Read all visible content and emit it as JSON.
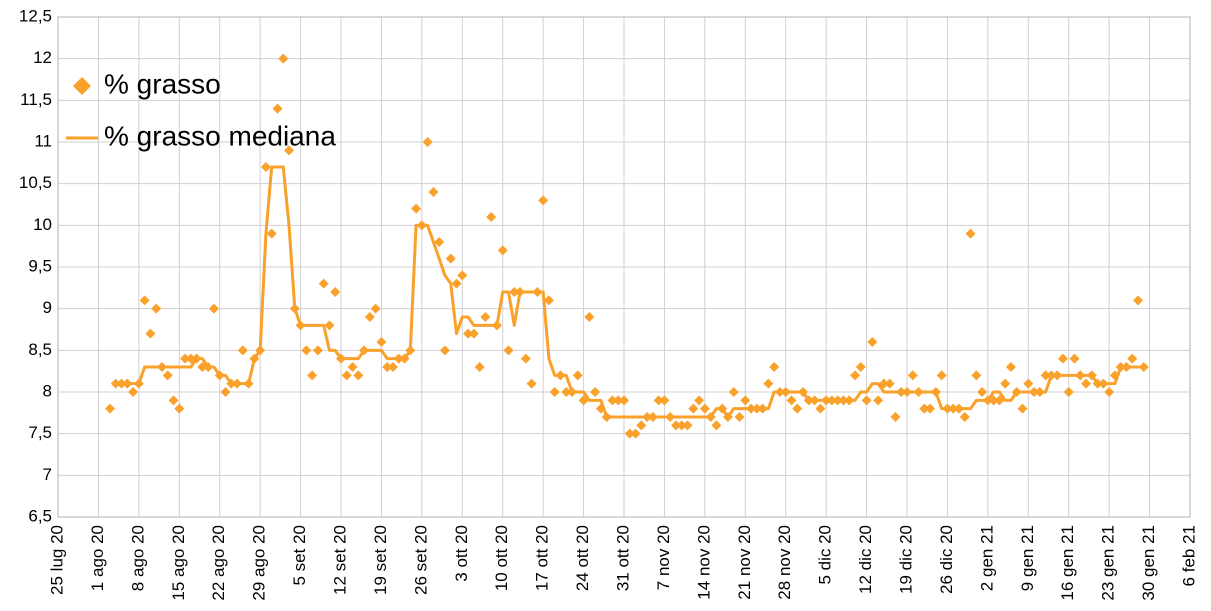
{
  "chart_data": {
    "type": "scatter+line",
    "x": [
      "2020-08-03",
      "2020-08-04",
      "2020-08-05",
      "2020-08-06",
      "2020-08-07",
      "2020-08-08",
      "2020-08-09",
      "2020-08-10",
      "2020-08-11",
      "2020-08-12",
      "2020-08-13",
      "2020-08-14",
      "2020-08-15",
      "2020-08-16",
      "2020-08-17",
      "2020-08-18",
      "2020-08-19",
      "2020-08-20",
      "2020-08-21",
      "2020-08-22",
      "2020-08-23",
      "2020-08-24",
      "2020-08-25",
      "2020-08-26",
      "2020-08-27",
      "2020-08-28",
      "2020-08-29",
      "2020-08-30",
      "2020-08-31",
      "2020-09-01",
      "2020-09-02",
      "2020-09-03",
      "2020-09-04",
      "2020-09-05",
      "2020-09-06",
      "2020-09-07",
      "2020-09-08",
      "2020-09-09",
      "2020-09-10",
      "2020-09-11",
      "2020-09-12",
      "2020-09-13",
      "2020-09-14",
      "2020-09-15",
      "2020-09-16",
      "2020-09-17",
      "2020-09-18",
      "2020-09-19",
      "2020-09-20",
      "2020-09-21",
      "2020-09-22",
      "2020-09-23",
      "2020-09-24",
      "2020-09-25",
      "2020-09-26",
      "2020-09-27",
      "2020-09-28",
      "2020-09-29",
      "2020-09-30",
      "2020-10-01",
      "2020-10-02",
      "2020-10-03",
      "2020-10-04",
      "2020-10-05",
      "2020-10-06",
      "2020-10-07",
      "2020-10-08",
      "2020-10-09",
      "2020-10-10",
      "2020-10-11",
      "2020-10-12",
      "2020-10-13",
      "2020-10-14",
      "2020-10-15",
      "2020-10-16",
      "2020-10-17",
      "2020-10-18",
      "2020-10-19",
      "2020-10-20",
      "2020-10-21",
      "2020-10-22",
      "2020-10-23",
      "2020-10-24",
      "2020-10-25",
      "2020-10-26",
      "2020-10-27",
      "2020-10-28",
      "2020-10-29",
      "2020-10-30",
      "2020-10-31",
      "2020-11-01",
      "2020-11-02",
      "2020-11-03",
      "2020-11-04",
      "2020-11-05",
      "2020-11-06",
      "2020-11-07",
      "2020-11-08",
      "2020-11-09",
      "2020-11-10",
      "2020-11-11",
      "2020-11-12",
      "2020-11-13",
      "2020-11-14",
      "2020-11-15",
      "2020-11-16",
      "2020-11-17",
      "2020-11-18",
      "2020-11-19",
      "2020-11-20",
      "2020-11-21",
      "2020-11-22",
      "2020-11-23",
      "2020-11-24",
      "2020-11-25",
      "2020-11-26",
      "2020-11-27",
      "2020-11-28",
      "2020-11-29",
      "2020-11-30",
      "2020-12-01",
      "2020-12-02",
      "2020-12-03",
      "2020-12-04",
      "2020-12-05",
      "2020-12-06",
      "2020-12-07",
      "2020-12-08",
      "2020-12-09",
      "2020-12-10",
      "2020-12-11",
      "2020-12-12",
      "2020-12-13",
      "2020-12-14",
      "2020-12-15",
      "2020-12-16",
      "2020-12-17",
      "2020-12-18",
      "2020-12-19",
      "2020-12-20",
      "2020-12-21",
      "2020-12-22",
      "2020-12-23",
      "2020-12-24",
      "2020-12-25",
      "2020-12-26",
      "2020-12-27",
      "2020-12-28",
      "2020-12-29",
      "2020-12-30",
      "2020-12-31",
      "2021-01-01",
      "2021-01-02",
      "2021-01-03",
      "2021-01-04",
      "2021-01-05",
      "2021-01-06",
      "2021-01-07",
      "2021-01-08",
      "2021-01-09",
      "2021-01-10",
      "2021-01-11",
      "2021-01-12",
      "2021-01-13",
      "2021-01-14",
      "2021-01-15",
      "2021-01-16",
      "2021-01-17",
      "2021-01-18",
      "2021-01-19",
      "2021-01-20",
      "2021-01-21",
      "2021-01-22",
      "2021-01-23",
      "2021-01-24",
      "2021-01-25",
      "2021-01-26",
      "2021-01-27",
      "2021-01-28",
      "2021-01-29"
    ],
    "series": [
      {
        "name": "% grasso",
        "type": "scatter",
        "color": "#f9a12b",
        "values": [
          7.8,
          8.1,
          8.1,
          8.1,
          8.0,
          8.1,
          9.1,
          8.7,
          9.0,
          8.3,
          8.2,
          7.9,
          7.8,
          8.4,
          8.4,
          8.4,
          8.3,
          8.3,
          9.0,
          8.2,
          8.0,
          8.1,
          8.1,
          8.5,
          8.1,
          8.4,
          8.5,
          10.7,
          9.9,
          11.4,
          12.0,
          10.9,
          9.0,
          8.8,
          8.5,
          8.2,
          8.5,
          9.3,
          8.8,
          9.2,
          8.4,
          8.2,
          8.3,
          8.2,
          8.5,
          8.9,
          9.0,
          8.6,
          8.3,
          8.3,
          8.4,
          8.4,
          8.5,
          10.2,
          10.0,
          11.0,
          10.4,
          9.8,
          8.5,
          9.6,
          9.3,
          9.4,
          8.7,
          8.7,
          8.3,
          8.9,
          10.1,
          8.8,
          9.7,
          8.5,
          9.2,
          9.2,
          8.4,
          8.1,
          9.2,
          10.3,
          9.1,
          8.0,
          8.2,
          8.0,
          8.0,
          8.2,
          7.9,
          8.9,
          8.0,
          7.8,
          7.7,
          7.9,
          7.9,
          7.9,
          7.5,
          7.5,
          7.6,
          7.7,
          7.7,
          7.9,
          7.9,
          7.7,
          7.6,
          7.6,
          7.6,
          7.8,
          7.9,
          7.8,
          7.7,
          7.6,
          7.8,
          7.7,
          8.0,
          7.7,
          7.9,
          7.8,
          7.8,
          7.8,
          8.1,
          8.3,
          8.0,
          8.0,
          7.9,
          7.8,
          8.0,
          7.9,
          7.9,
          7.8,
          7.9,
          7.9,
          7.9,
          7.9,
          7.9,
          8.2,
          8.3,
          7.9,
          8.6,
          7.9,
          8.1,
          8.1,
          7.7,
          8.0,
          8.0,
          8.2,
          8.0,
          7.8,
          7.8,
          8.0,
          8.2,
          7.8,
          7.8,
          7.8,
          7.7,
          9.9,
          8.2,
          8.0,
          7.9,
          7.9,
          7.9,
          8.1,
          8.3,
          8.0,
          7.8,
          8.1,
          8.0,
          8.0,
          8.2,
          8.2,
          8.2,
          8.4,
          8.0,
          8.4,
          8.2,
          8.1,
          8.2,
          8.1,
          8.1,
          8.0,
          8.2,
          8.3,
          8.3,
          8.4,
          9.1,
          8.3
        ]
      },
      {
        "name": "% grasso mediana",
        "type": "line",
        "color": "#f9a12b",
        "values": [
          null,
          8.1,
          8.1,
          8.1,
          8.1,
          8.1,
          8.3,
          8.3,
          8.3,
          8.3,
          8.3,
          8.3,
          8.3,
          8.3,
          8.3,
          8.4,
          8.4,
          8.3,
          8.3,
          8.2,
          8.2,
          8.1,
          8.1,
          8.1,
          8.1,
          8.4,
          8.5,
          9.9,
          10.7,
          10.7,
          10.7,
          10.0,
          9.0,
          8.8,
          8.8,
          8.8,
          8.8,
          8.8,
          8.5,
          8.5,
          8.4,
          8.4,
          8.4,
          8.4,
          8.5,
          8.5,
          8.5,
          8.5,
          8.4,
          8.4,
          8.4,
          8.4,
          8.5,
          10.0,
          10.0,
          10.0,
          9.8,
          9.6,
          9.4,
          9.3,
          8.7,
          8.9,
          8.9,
          8.8,
          8.8,
          8.8,
          8.8,
          8.8,
          9.2,
          9.2,
          8.8,
          9.2,
          9.2,
          9.2,
          9.2,
          9.2,
          8.4,
          8.2,
          8.2,
          8.2,
          8.0,
          8.0,
          8.0,
          7.9,
          7.9,
          7.9,
          7.7,
          7.7,
          7.7,
          7.7,
          7.7,
          7.7,
          7.7,
          7.7,
          7.7,
          7.7,
          7.7,
          7.7,
          7.7,
          7.7,
          7.7,
          7.7,
          7.7,
          7.7,
          7.7,
          7.8,
          7.8,
          7.7,
          7.8,
          7.8,
          7.8,
          7.8,
          7.8,
          7.8,
          7.8,
          8.0,
          8.0,
          8.0,
          8.0,
          8.0,
          8.0,
          7.9,
          7.9,
          7.9,
          7.9,
          7.9,
          7.9,
          7.9,
          7.9,
          7.9,
          8.0,
          8.0,
          8.1,
          8.1,
          8.0,
          8.0,
          8.0,
          8.0,
          8.0,
          8.0,
          8.0,
          8.0,
          8.0,
          8.0,
          7.8,
          7.8,
          7.8,
          7.8,
          7.8,
          7.8,
          7.9,
          7.9,
          7.9,
          8.0,
          8.0,
          7.9,
          7.9,
          8.0,
          8.0,
          8.0,
          8.0,
          8.0,
          8.0,
          8.2,
          8.2,
          8.2,
          8.2,
          8.2,
          8.2,
          8.2,
          8.2,
          8.1,
          8.1,
          8.1,
          8.1,
          8.3,
          8.3,
          8.3,
          8.3,
          8.3
        ]
      }
    ],
    "xlim": [
      "2020-07-25",
      "2021-02-06"
    ],
    "xticks": [
      {
        "value": "2020-07-25",
        "label": "25 lug 20"
      },
      {
        "value": "2020-08-01",
        "label": "1 ago 20"
      },
      {
        "value": "2020-08-08",
        "label": "8 ago 20"
      },
      {
        "value": "2020-08-15",
        "label": "15 ago 20"
      },
      {
        "value": "2020-08-22",
        "label": "22 ago 20"
      },
      {
        "value": "2020-08-29",
        "label": "29 ago 20"
      },
      {
        "value": "2020-09-05",
        "label": "5 set 20"
      },
      {
        "value": "2020-09-12",
        "label": "12 set 20"
      },
      {
        "value": "2020-09-19",
        "label": "19 set 20"
      },
      {
        "value": "2020-09-26",
        "label": "26 set 20"
      },
      {
        "value": "2020-10-03",
        "label": "3 ott 20"
      },
      {
        "value": "2020-10-10",
        "label": "10 ott 20"
      },
      {
        "value": "2020-10-17",
        "label": "17 ott 20"
      },
      {
        "value": "2020-10-24",
        "label": "24 ott 20"
      },
      {
        "value": "2020-10-31",
        "label": "31 ott 20"
      },
      {
        "value": "2020-11-07",
        "label": "7 nov 20"
      },
      {
        "value": "2020-11-14",
        "label": "14 nov 20"
      },
      {
        "value": "2020-11-21",
        "label": "21 nov 20"
      },
      {
        "value": "2020-11-28",
        "label": "28 nov 20"
      },
      {
        "value": "2020-12-05",
        "label": "5 dic 20"
      },
      {
        "value": "2020-12-12",
        "label": "12 dic 20"
      },
      {
        "value": "2020-12-19",
        "label": "19 dic 20"
      },
      {
        "value": "2020-12-26",
        "label": "26 dic 20"
      },
      {
        "value": "2021-01-02",
        "label": "2 gen 21"
      },
      {
        "value": "2021-01-09",
        "label": "9 gen 21"
      },
      {
        "value": "2021-01-16",
        "label": "16 gen 21"
      },
      {
        "value": "2021-01-23",
        "label": "23 gen 21"
      },
      {
        "value": "2021-01-30",
        "label": "30 gen 21"
      },
      {
        "value": "2021-02-06",
        "label": "6 feb 21"
      }
    ],
    "ylim": [
      6.5,
      12.5
    ],
    "yticks": [
      {
        "value": 6.5,
        "label": "6,5"
      },
      7,
      {
        "value": 7.5,
        "label": "7,5"
      },
      8,
      {
        "value": 8.5,
        "label": "8,5"
      },
      9,
      {
        "value": 9.5,
        "label": "9,5"
      },
      10,
      {
        "value": 10.5,
        "label": "10,5"
      },
      11,
      {
        "value": 11.5,
        "label": "11,5"
      },
      12,
      {
        "value": 12.5,
        "label": "12,5"
      }
    ],
    "grid": true,
    "legend": "top-left"
  }
}
